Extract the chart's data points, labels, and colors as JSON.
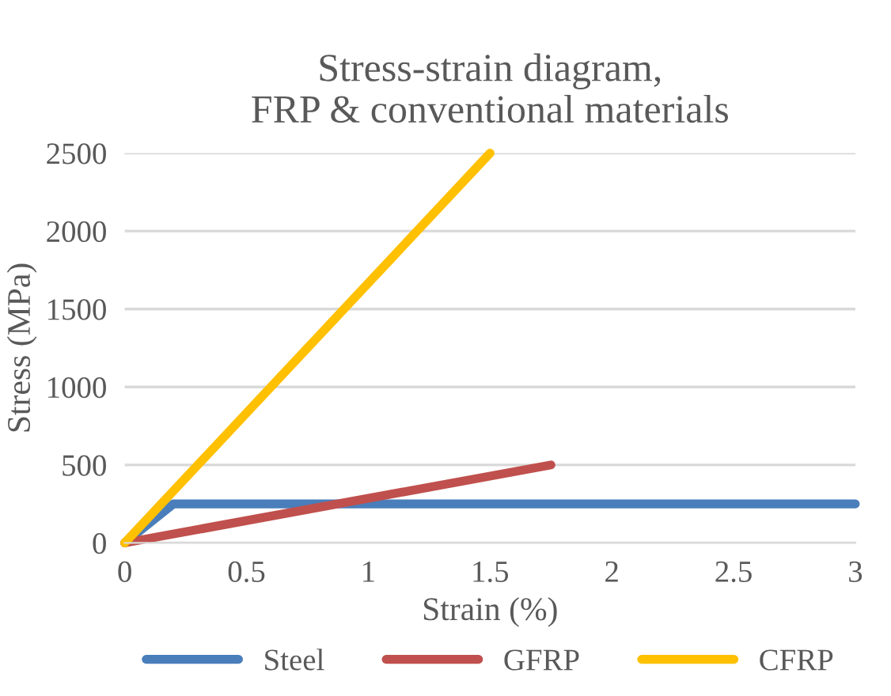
{
  "chart_data": {
    "type": "line",
    "title": "Stress-strain diagram,\nFRP & conventional materials",
    "xlabel": "Strain (%)",
    "ylabel": "Stress (MPa)",
    "series": [
      {
        "name": "Steel",
        "color": "#4a7ebb",
        "x": [
          0,
          0.2,
          3
        ],
        "values": [
          0,
          250,
          250
        ]
      },
      {
        "name": "GFRP",
        "color": "#c0504d",
        "x": [
          0,
          1.75
        ],
        "values": [
          0,
          500
        ]
      },
      {
        "name": "CFRP",
        "color": "#ffc000",
        "x": [
          0,
          1.5
        ],
        "values": [
          0,
          2500
        ]
      }
    ],
    "xlim": [
      0,
      3
    ],
    "xticks": [
      0,
      0.5,
      1,
      1.5,
      2,
      2.5,
      3
    ],
    "ylim": [
      0,
      2500
    ],
    "yticks": [
      0,
      500,
      1000,
      1500,
      2000,
      2500
    ],
    "grid": "y",
    "legend": "bottom",
    "marker": "none",
    "line_style": "solid"
  }
}
